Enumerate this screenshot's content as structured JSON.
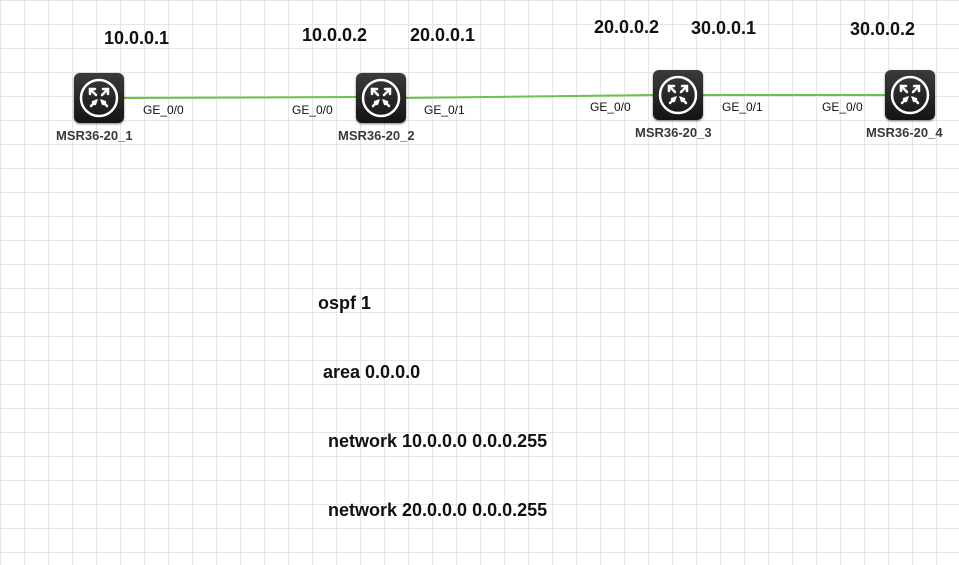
{
  "colors": {
    "link": "#6cc24a",
    "grid": "#e6e6e6",
    "router_body": "#1f1f1f",
    "text": "#111111"
  },
  "devices": [
    {
      "name": "MSR36-20_1",
      "icon": "router-icon"
    },
    {
      "name": "MSR36-20_2",
      "icon": "router-icon"
    },
    {
      "name": "MSR36-20_3",
      "icon": "router-icon"
    },
    {
      "name": "MSR36-20_4",
      "icon": "router-icon"
    }
  ],
  "ip_labels": [
    "10.0.0.1",
    "10.0.0.2",
    "20.0.0.1",
    "20.0.0.2",
    "30.0.0.1",
    "30.0.0.2"
  ],
  "links": [
    {
      "from": "MSR36-20_1",
      "from_port": "GE_0/0",
      "to": "MSR36-20_2",
      "to_port": "GE_0/0"
    },
    {
      "from": "MSR36-20_2",
      "from_port": "GE_0/1",
      "to": "MSR36-20_3",
      "to_port": "GE_0/0"
    },
    {
      "from": "MSR36-20_3",
      "from_port": "GE_0/1",
      "to": "MSR36-20_4",
      "to_port": "GE_0/0"
    }
  ],
  "config_lines": [
    "ospf 1",
    " area 0.0.0.0",
    "  network 10.0.0.0 0.0.0.255",
    "  network 20.0.0.0 0.0.0.255"
  ]
}
